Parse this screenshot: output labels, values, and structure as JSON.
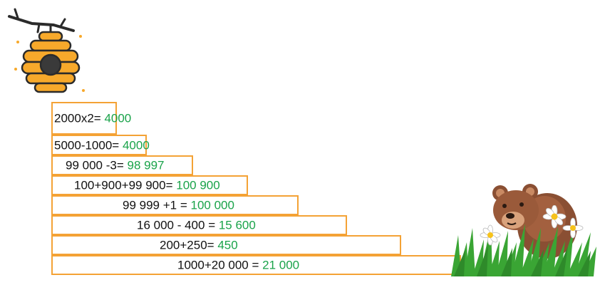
{
  "colors": {
    "step_border": "#f4a235",
    "answer": "#1aa34a",
    "text": "#111111",
    "hive_body": "#f7a92b",
    "hive_stripe": "#2b2b2b",
    "bear_fur": "#9a5a3a",
    "grass": "#3aa534"
  },
  "illustrations": {
    "hive": "beehive-icon",
    "bear": "bear-icon",
    "grass": "grass-icon",
    "flowers": "daisy-icon"
  },
  "steps": [
    {
      "expr": "2000x2= ",
      "answer": "4000"
    },
    {
      "expr": "5000-1000= ",
      "answer": "4000"
    },
    {
      "expr": "99 000 -3= ",
      "answer": "98 997"
    },
    {
      "expr": "100+900+99 900= ",
      "answer": "100 900"
    },
    {
      "expr": "99 999 +1 = ",
      "answer": "100 000"
    },
    {
      "expr": "16 000 - 400 = ",
      "answer": "15 600"
    },
    {
      "expr": "200+250= ",
      "answer": "450"
    },
    {
      "expr": "1000+20 000 = ",
      "answer": "21 000"
    }
  ]
}
